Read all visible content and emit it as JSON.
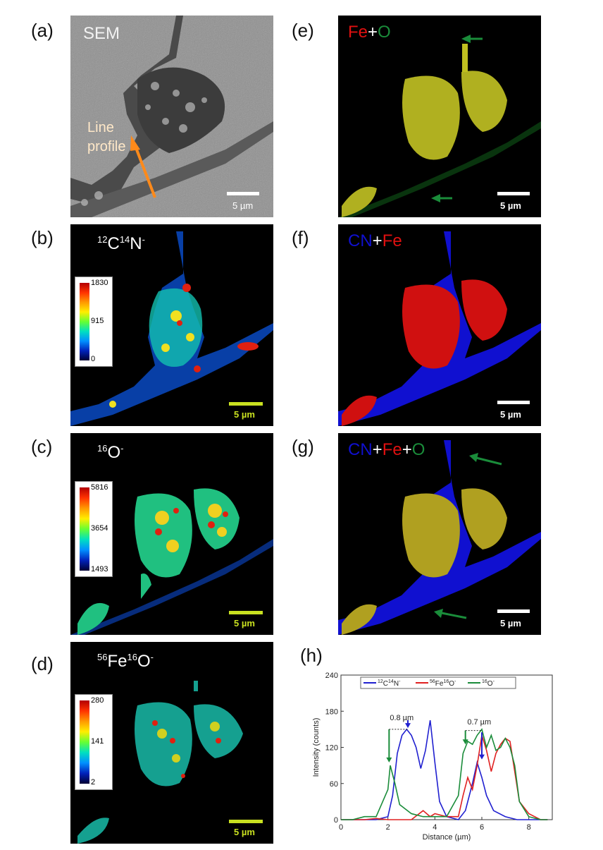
{
  "panels": {
    "a": {
      "label": "(a)",
      "title": "SEM",
      "annotation_line1": "Line",
      "annotation_line2": "profile",
      "scale": "5 µm"
    },
    "b": {
      "label": "(b)",
      "ion_mass1": "12",
      "ion_el1": "C",
      "ion_mass2": "14",
      "ion_el2": "N",
      "ion_charge": "-",
      "scale": "5 µm",
      "colorbar": {
        "max": "1830",
        "mid": "915",
        "min": "0"
      }
    },
    "c": {
      "label": "(c)",
      "ion_mass1": "16",
      "ion_el1": "O",
      "ion_charge": "-",
      "scale": "5 µm",
      "colorbar": {
        "max": "5816",
        "mid": "3654",
        "min": "1493"
      }
    },
    "d": {
      "label": "(d)",
      "ion_mass1": "56",
      "ion_el1": "Fe",
      "ion_mass2": "16",
      "ion_el2": "O",
      "ion_charge": "-",
      "scale": "5 µm",
      "colorbar": {
        "max": "280",
        "mid": "141",
        "min": "2"
      }
    },
    "e": {
      "label": "(e)",
      "part1": "Fe",
      "plus": "+",
      "part2": "O",
      "scale": "5 µm"
    },
    "f": {
      "label": "(f)",
      "part1": "CN",
      "plus": "+",
      "part2": "Fe",
      "scale": "5 µm"
    },
    "g": {
      "label": "(g)",
      "part1": "CN",
      "plus1": "+",
      "part2": "Fe",
      "plus2": "+",
      "part3": "O",
      "scale": "5 µm"
    },
    "h": {
      "label": "(h)"
    }
  },
  "colors": {
    "cn": "#1010d0",
    "fe": "#e01010",
    "o": "#1a8c3a",
    "scale_yellow": "#c8e020",
    "arrow_orange": "#ff8a1a"
  },
  "chart_data": {
    "type": "line",
    "xlabel": "Distance (µm)",
    "ylabel": "Intensity (counts)",
    "xlim": [
      0,
      9
    ],
    "ylim": [
      0,
      240
    ],
    "xticks": [
      0,
      2,
      4,
      6,
      8
    ],
    "yticks": [
      0,
      60,
      120,
      180,
      240
    ],
    "legend_position": "top",
    "annotations": [
      {
        "text": "0.8 µm",
        "x": 2.5,
        "y": 165
      },
      {
        "text": "0.7 µm",
        "x": 5.8,
        "y": 158
      }
    ],
    "series": [
      {
        "name": "12C14N-",
        "color": "#2020d0",
        "x": [
          0,
          0.5,
          1,
          1.5,
          2,
          2.2,
          2.4,
          2.6,
          2.8,
          3,
          3.2,
          3.4,
          3.6,
          3.8,
          4,
          4.2,
          4.5,
          5,
          5.3,
          5.6,
          5.8,
          6,
          6.2,
          6.5,
          7,
          7.5,
          8,
          8.5,
          8.8
        ],
        "y": [
          0,
          0,
          0,
          0,
          5,
          40,
          110,
          140,
          150,
          140,
          120,
          85,
          115,
          165,
          95,
          30,
          5,
          0,
          15,
          60,
          95,
          70,
          40,
          15,
          5,
          0,
          0,
          0,
          0
        ]
      },
      {
        "name": "56Fe16O-",
        "color": "#e02020",
        "x": [
          0,
          0.5,
          1,
          1.5,
          2,
          2.5,
          3,
          3.5,
          3.8,
          4,
          4.5,
          5,
          5.2,
          5.4,
          5.6,
          5.8,
          6,
          6.2,
          6.4,
          6.6,
          6.8,
          7,
          7.2,
          7.4,
          7.6,
          8,
          8.5,
          8.8
        ],
        "y": [
          0,
          0,
          0,
          2,
          0,
          0,
          0,
          15,
          5,
          10,
          5,
          5,
          40,
          70,
          50,
          90,
          140,
          115,
          80,
          110,
          125,
          135,
          130,
          80,
          30,
          10,
          0,
          0
        ]
      },
      {
        "name": "16O-",
        "color": "#1a8c3a",
        "x": [
          0,
          0.5,
          1,
          1.5,
          2,
          2.1,
          2.3,
          2.5,
          3,
          3.5,
          4,
          4.5,
          5,
          5.2,
          5.4,
          5.6,
          5.8,
          6,
          6.2,
          6.4,
          6.6,
          6.8,
          7,
          7.2,
          7.4,
          7.6,
          8,
          8.5,
          8.8
        ],
        "y": [
          0,
          0,
          5,
          5,
          50,
          90,
          60,
          25,
          10,
          5,
          5,
          5,
          40,
          110,
          130,
          125,
          140,
          150,
          120,
          140,
          115,
          120,
          135,
          120,
          90,
          30,
          5,
          0,
          0
        ]
      }
    ]
  }
}
